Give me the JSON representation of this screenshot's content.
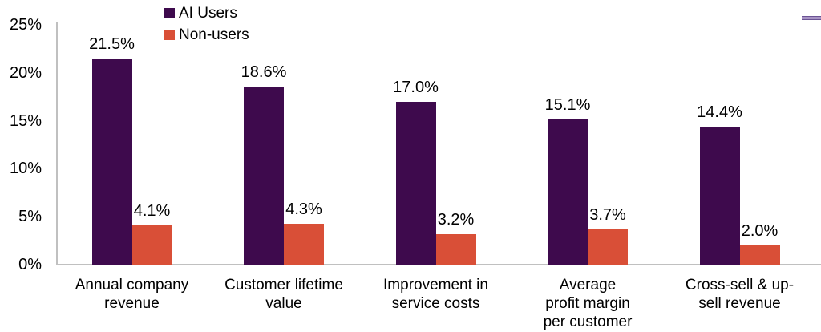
{
  "page": {
    "background_color": "#ffffff",
    "text_color": "#000000",
    "axis_color": "#C0C0C0",
    "accent_line_color_outer": "#6B5494",
    "accent_line_color_inner": "#A793C4"
  },
  "chart_data": {
    "type": "bar",
    "categories": [
      "Annual company revenue",
      "Customer lifetime value",
      "Improvement in service costs",
      "Average profit margin per customer",
      "Cross-sell & up-sell revenue"
    ],
    "series": [
      {
        "name": "AI Users",
        "color": "#3E0A4D",
        "values": [
          21.5,
          18.6,
          17.0,
          15.1,
          14.4
        ],
        "data_labels": [
          "21.5%",
          "18.6%",
          "17.0%",
          "15.1%",
          "14.4%"
        ]
      },
      {
        "name": "Non-users",
        "color": "#D94F37",
        "values": [
          4.1,
          4.3,
          3.2,
          3.7,
          2.0
        ],
        "data_labels": [
          "4.1%",
          "4.3%",
          "3.2%",
          "3.7%",
          "2.0%"
        ]
      }
    ],
    "y_axis": {
      "min": 0,
      "max": 25,
      "tick_step": 5,
      "unit": "%",
      "tick_labels": [
        "0%",
        "5%",
        "10%",
        "15%",
        "20%",
        "25%"
      ]
    },
    "legend": {
      "position": "top-left",
      "entries": [
        "AI Users",
        "Non-users"
      ]
    },
    "grid": false,
    "data_labels_shown": true
  }
}
